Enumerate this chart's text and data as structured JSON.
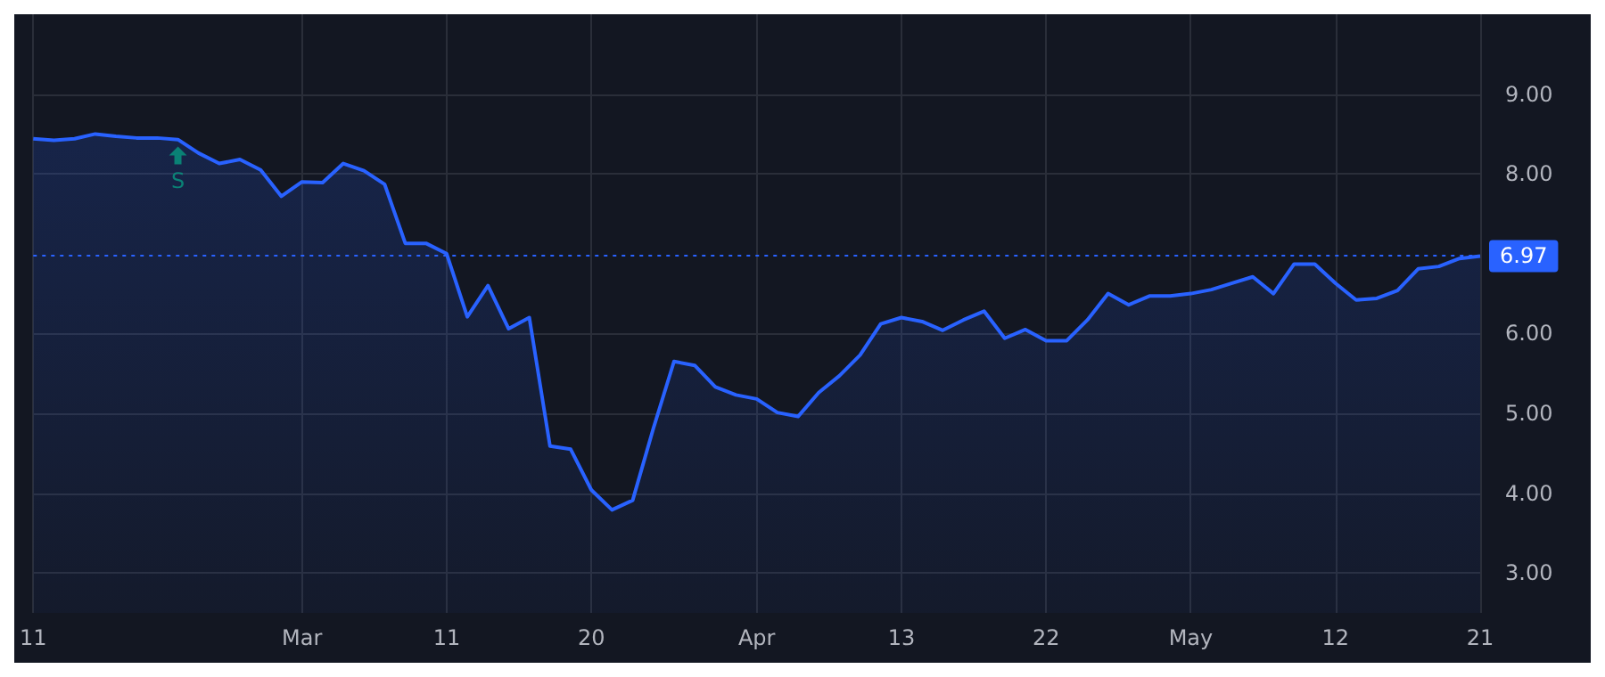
{
  "chart_data": {
    "type": "area",
    "categories": [
      "11",
      null,
      null,
      null,
      null,
      null,
      null,
      null,
      null,
      null,
      null,
      null,
      null,
      "Mar",
      null,
      null,
      null,
      null,
      null,
      null,
      "11",
      null,
      null,
      null,
      null,
      null,
      null,
      "20",
      null,
      null,
      null,
      null,
      null,
      null,
      null,
      "Apr",
      null,
      null,
      null,
      null,
      null,
      null,
      "13",
      null,
      null,
      null,
      null,
      null,
      null,
      "22",
      null,
      null,
      null,
      null,
      null,
      null,
      "May",
      null,
      null,
      null,
      null,
      null,
      null,
      "12",
      null,
      null,
      null,
      null,
      null,
      null,
      "21"
    ],
    "series": [
      {
        "color": "#2962ff",
        "values": [
          8.44,
          8.42,
          8.44,
          8.5,
          8.47,
          8.45,
          8.45,
          8.43,
          8.26,
          8.13,
          8.18,
          8.05,
          7.72,
          7.9,
          7.89,
          8.13,
          8.04,
          7.87,
          7.13,
          7.13,
          7.0,
          6.21,
          6.6,
          6.06,
          6.2,
          4.59,
          4.55,
          4.04,
          3.79,
          3.91,
          4.81,
          5.65,
          5.6,
          5.33,
          5.23,
          5.18,
          5.01,
          4.96,
          5.26,
          5.47,
          5.73,
          6.12,
          6.2,
          6.15,
          6.04,
          6.17,
          6.28,
          5.94,
          6.05,
          5.91,
          5.91,
          6.17,
          6.5,
          6.36,
          6.47,
          6.47,
          6.5,
          6.55,
          6.63,
          6.71,
          6.5,
          6.87,
          6.87,
          6.63,
          6.42,
          6.44,
          6.54,
          6.81,
          6.84,
          6.94,
          6.97
        ]
      },
      {
        "name": "S",
        "type": "scatter",
        "marker": "triangle",
        "color": "#089981",
        "values": [
          null,
          null,
          null,
          null,
          null,
          null,
          null,
          8.23,
          null,
          null,
          null,
          null,
          null,
          null,
          null,
          null,
          null,
          null,
          null,
          null,
          null,
          null,
          null,
          null,
          null,
          null,
          null,
          null,
          null,
          null,
          null,
          null,
          null,
          null,
          null,
          null,
          null,
          null,
          null,
          null,
          null,
          null,
          null,
          null,
          null,
          null,
          null,
          null,
          null,
          null,
          null,
          null,
          null,
          null,
          null,
          null,
          null,
          null,
          null,
          null,
          null,
          null,
          null,
          null,
          null,
          null,
          null,
          null,
          null,
          null,
          null
        ]
      }
    ],
    "ylim": [
      2.5,
      10
    ],
    "yticks": [
      {
        "value": 3,
        "label": "3.00"
      },
      {
        "value": 4,
        "label": "4.00"
      },
      {
        "value": 5,
        "label": "5.00"
      },
      {
        "value": 6,
        "label": "6.00"
      },
      {
        "value": 8,
        "label": "8.00"
      },
      {
        "value": 9,
        "label": "9.00"
      }
    ],
    "ref_lines": [
      {
        "axis": "y",
        "value": 6.97,
        "label": "6.97",
        "color": "#2962ff",
        "line_style": "dotted"
      }
    ],
    "grid": true
  }
}
